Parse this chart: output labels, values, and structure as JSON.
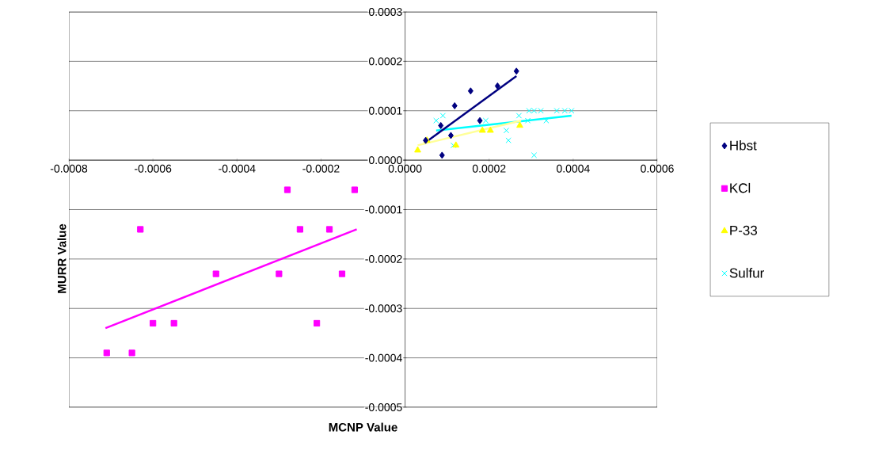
{
  "chart_data": {
    "type": "scatter",
    "xlabel": "MCNP Value",
    "ylabel": "MURR Value",
    "xlim": [
      -0.0008,
      0.0006
    ],
    "ylim": [
      -0.0005,
      0.0003
    ],
    "xticks": [
      {
        "value": -0.0008,
        "label": "-0.0008"
      },
      {
        "value": -0.0006,
        "label": "-0.0006"
      },
      {
        "value": -0.0004,
        "label": "-0.0004"
      },
      {
        "value": -0.0002,
        "label": "-0.0002"
      },
      {
        "value": 0,
        "label": "0.0000"
      },
      {
        "value": 0.0002,
        "label": "0.0002"
      },
      {
        "value": 0.0004,
        "label": "0.0004"
      },
      {
        "value": 0.0006,
        "label": "0.0006"
      }
    ],
    "yticks": [
      {
        "value": -0.0005,
        "label": "-0.0005"
      },
      {
        "value": -0.0004,
        "label": "-0.0004"
      },
      {
        "value": -0.0003,
        "label": "-0.0003"
      },
      {
        "value": -0.0002,
        "label": "-0.0002"
      },
      {
        "value": -0.0001,
        "label": "-0.0001"
      },
      {
        "value": 0,
        "label": "0.0000"
      },
      {
        "value": 0.0001,
        "label": "0.0001"
      },
      {
        "value": 0.0002,
        "label": "0.0002"
      },
      {
        "value": 0.0003,
        "label": "0.0003"
      }
    ],
    "grid": "y",
    "legend": "right",
    "series": [
      {
        "name": "Hbst",
        "color": "#000080",
        "marker": "diamond",
        "x": [
          4.9e-05,
          8.5e-05,
          8.8e-05,
          0.000109,
          0.000118,
          0.000156,
          0.000178,
          0.00022,
          0.000265
        ],
        "values": [
          4e-05,
          7e-05,
          1e-05,
          5e-05,
          0.00011,
          0.00014,
          8e-05,
          0.00015,
          0.00018
        ]
      },
      {
        "name": "KCl",
        "color": "#ff00ff",
        "marker": "square",
        "x": [
          -0.00071,
          -0.00065,
          -0.00063,
          -0.0006,
          -0.00055,
          -0.00045,
          -0.0003,
          -0.00028,
          -0.00025,
          -0.00021,
          -0.00018,
          -0.00015,
          -0.00012
        ],
        "values": [
          -0.00039,
          -0.00039,
          -0.00014,
          -0.00033,
          -0.00033,
          -0.00023,
          -0.00023,
          -6e-05,
          -0.00014,
          -0.00033,
          -0.00014,
          -0.00023,
          -6e-05
        ]
      },
      {
        "name": "P-33",
        "color": "#ffff00",
        "marker": "triangle",
        "x": [
          3e-05,
          5.2e-05,
          0.000121,
          0.000184,
          0.000203,
          0.000273
        ],
        "values": [
          2e-05,
          4e-05,
          3e-05,
          6e-05,
          6e-05,
          7e-05
        ]
      },
      {
        "name": "Sulfur",
        "color": "#00ffff",
        "marker": "cross",
        "x": [
          7.4e-05,
          9e-05,
          0.000115,
          0.000192,
          0.000241,
          0.000246,
          0.000271,
          0.000292,
          0.000295,
          0.000307,
          0.000307,
          0.000323,
          0.000336,
          0.000361,
          0.00038,
          0.000396
        ],
        "values": [
          8e-05,
          9e-05,
          3e-05,
          8e-05,
          6e-05,
          4e-05,
          9e-05,
          8e-05,
          0.0001,
          0.0001,
          1e-05,
          0.0001,
          8e-05,
          0.0001,
          0.0001,
          0.0001
        ]
      },
      {
        "type": "line",
        "color": "#000080",
        "marker": "none",
        "x": [
          5.5e-05,
          0.000265
        ],
        "values": [
          4e-05,
          0.00017
        ]
      },
      {
        "type": "line",
        "color": "#ff00ff",
        "marker": "none",
        "x": [
          -0.000713,
          -0.000115
        ],
        "values": [
          -0.00034,
          -0.00014
        ]
      },
      {
        "type": "line",
        "color": "#ffff99",
        "marker": "none",
        "x": [
          3e-05,
          0.000276
        ],
        "values": [
          3e-05,
          8e-05
        ]
      },
      {
        "type": "line",
        "color": "#00ffff",
        "marker": "none",
        "x": [
          7.4e-05,
          0.000396
        ],
        "values": [
          6e-05,
          9e-05
        ]
      }
    ]
  }
}
